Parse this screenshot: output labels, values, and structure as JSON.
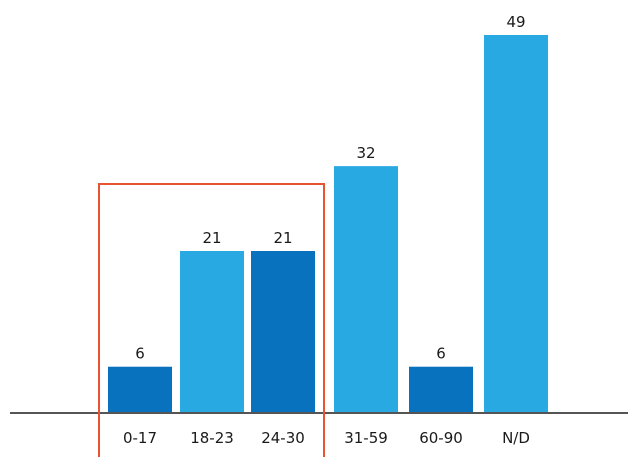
{
  "chart_data": {
    "type": "bar",
    "categories": [
      "0-17",
      "18-23",
      "24-30",
      "31-59",
      "60-90",
      "N/D"
    ],
    "values": [
      6,
      21,
      21,
      32,
      6,
      49
    ],
    "ylim": [
      0,
      49
    ],
    "grid": false,
    "legend": "none",
    "bar_colors": [
      "#0872bf",
      "#29a9e1",
      "#0872bf",
      "#29a9e1",
      "#0872bf",
      "#29a9e1"
    ],
    "highlight": {
      "categories": [
        "0-17",
        "18-23",
        "24-30"
      ],
      "color": "#e8542f"
    },
    "axis_color": "#555555"
  }
}
